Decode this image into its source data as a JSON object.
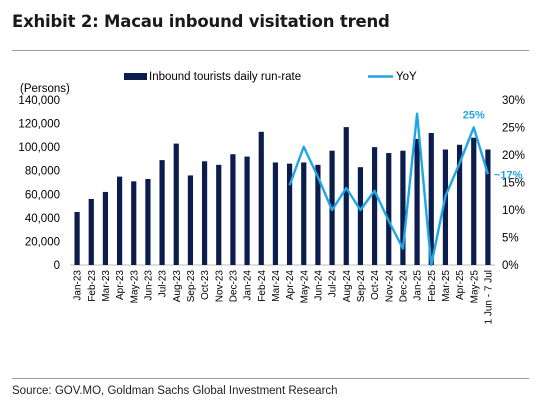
{
  "exhibit_title": "Exhibit 2: Macau inbound visitation trend",
  "source": "Source: GOV.MO, Goldman Sachs Global Investment Research",
  "colors": {
    "bars": "#0b1c4d",
    "line": "#20a6e3",
    "annotation": "#20a6e3"
  },
  "chart_data": {
    "type": "bar",
    "secondary_type": "line",
    "ylabel_left": "(Persons)",
    "ylim_left": [
      0,
      140000
    ],
    "yticks_left": [
      "140,000",
      "120,000",
      "100,000",
      "80,000",
      "60,000",
      "40,000",
      "20,000",
      "0"
    ],
    "ylim_right": [
      0,
      30
    ],
    "yticks_right": [
      "30%",
      "25%",
      "20%",
      "15%",
      "10%",
      "5%",
      "0%"
    ],
    "legend": {
      "bar": "Inbound tourists daily run-rate",
      "line": "YoY",
      "position": "top"
    },
    "categories": [
      "Jan-23",
      "Feb-23",
      "Mar-23",
      "Apr-23",
      "May-23",
      "Jun-23",
      "Jul-23",
      "Aug-23",
      "Sep-23",
      "Oct-23",
      "Nov-23",
      "Dec-23",
      "Jan-24",
      "Feb-24",
      "Mar-24",
      "Apr-24",
      "May-24",
      "Jun-24",
      "Jul-24",
      "Aug-24",
      "Sep-24",
      "Oct-24",
      "Nov-24",
      "Dec-24",
      "Jan-25",
      "Feb-25",
      "Mar-25",
      "Apr-25",
      "May-25",
      "1 Jun - 7 Jul"
    ],
    "series": [
      {
        "type": "bar",
        "values": [
          45000,
          56000,
          62000,
          75000,
          71000,
          73000,
          89000,
          103000,
          76000,
          88000,
          85000,
          94000,
          92000,
          113000,
          87000,
          86000,
          87000,
          85000,
          97000,
          117000,
          83000,
          100000,
          95000,
          97000,
          107000,
          112000,
          98000,
          102000,
          108000,
          98000
        ]
      },
      {
        "type": "line",
        "values": [
          null,
          null,
          null,
          null,
          null,
          null,
          null,
          null,
          null,
          null,
          null,
          null,
          null,
          null,
          null,
          14.5,
          21.5,
          16,
          10,
          14,
          10,
          13.5,
          8,
          3,
          27.5,
          0,
          12.5,
          18.5,
          25,
          16.5
        ]
      }
    ],
    "annotations": [
      {
        "label": "25%",
        "category": "May-25"
      },
      {
        "label": "~17%",
        "category": "1 Jun - 7 Jul"
      }
    ],
    "grid": false
  }
}
